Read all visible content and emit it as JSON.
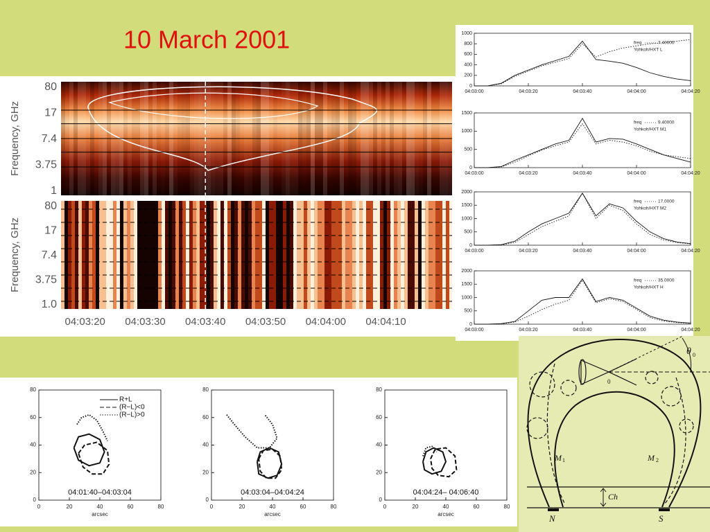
{
  "title": "10 March 2001",
  "chart_data": [
    {
      "type": "heatmap",
      "ylabel": "Frequency, GHz",
      "categories": [
        "80",
        "17",
        "7.4",
        "3.75",
        "1"
      ],
      "xlim": [
        "04:03:16",
        "04:04:21"
      ],
      "marker_x": "04:03:40"
    },
    {
      "type": "heatmap",
      "ylabel": "Frequency, GHz",
      "categories": [
        "80",
        "17",
        "7.4",
        "3.75",
        "1.0"
      ],
      "xlim": [
        "04:03:16",
        "04:04:21"
      ],
      "marker_x": "04:03:40",
      "xticks": [
        "04:03:20",
        "04:03:30",
        "04:03:40",
        "04:03:50",
        "04:04:00",
        "04:04:10"
      ]
    },
    {
      "type": "line",
      "legend": [
        "freq",
        "7.40000",
        "Yohkoh/HXT L"
      ],
      "x": [
        "04:03:00",
        "04:03:05",
        "04:03:10",
        "04:03:15",
        "04:03:20",
        "04:03:25",
        "04:03:30",
        "04:03:35",
        "04:03:40",
        "04:03:45",
        "04:03:50",
        "04:03:55",
        "04:04:00",
        "04:04:05",
        "04:04:10",
        "04:04:15",
        "04:04:20"
      ],
      "xlim": [
        "04:03:00",
        "04:04:20"
      ],
      "xticks": [
        "04:03:00",
        "04:03:20",
        "04:03:40",
        "04:04:00",
        "04:04:20"
      ],
      "ylim": [
        0,
        1000
      ],
      "yticks": [
        0,
        200,
        400,
        600,
        800,
        1000
      ],
      "series": [
        {
          "style": "solid",
          "values": [
            0,
            0,
            50,
            200,
            300,
            400,
            480,
            560,
            850,
            500,
            470,
            430,
            350,
            250,
            180,
            130,
            100
          ]
        },
        {
          "style": "dotted",
          "values": [
            0,
            0,
            40,
            180,
            280,
            380,
            450,
            520,
            800,
            550,
            650,
            720,
            760,
            800,
            820,
            850,
            880
          ]
        }
      ]
    },
    {
      "type": "line",
      "legend": [
        "freq",
        "9.40000",
        "Yohkoh/HXT M1"
      ],
      "x": [
        "04:03:00",
        "04:03:05",
        "04:03:10",
        "04:03:15",
        "04:03:20",
        "04:03:25",
        "04:03:30",
        "04:03:35",
        "04:03:40",
        "04:03:45",
        "04:03:50",
        "04:03:55",
        "04:04:00",
        "04:04:05",
        "04:04:10",
        "04:04:15",
        "04:04:20"
      ],
      "xlim": [
        "04:03:00",
        "04:04:20"
      ],
      "xticks": [
        "04:03:00",
        "04:03:20",
        "04:03:40",
        "04:04:00",
        "04:04:20"
      ],
      "ylim": [
        0,
        1500
      ],
      "yticks": [
        0,
        500,
        1000,
        1500
      ],
      "series": [
        {
          "style": "solid",
          "values": [
            0,
            0,
            30,
            200,
            350,
            500,
            650,
            750,
            1350,
            700,
            800,
            780,
            650,
            500,
            350,
            250,
            150
          ]
        },
        {
          "style": "dotted",
          "values": [
            0,
            0,
            20,
            150,
            320,
            480,
            600,
            700,
            1200,
            650,
            750,
            700,
            600,
            450,
            350,
            300,
            250
          ]
        }
      ]
    },
    {
      "type": "line",
      "legend": [
        "freq",
        "17.0000",
        "Yohkoh/HXT M2"
      ],
      "x": [
        "04:03:00",
        "04:03:05",
        "04:03:10",
        "04:03:15",
        "04:03:20",
        "04:03:25",
        "04:03:30",
        "04:03:35",
        "04:03:40",
        "04:03:45",
        "04:03:50",
        "04:03:55",
        "04:04:00",
        "04:04:05",
        "04:04:10",
        "04:04:15",
        "04:04:20"
      ],
      "xlim": [
        "04:03:00",
        "04:04:20"
      ],
      "xticks": [
        "04:03:00",
        "04:03:20",
        "04:03:40",
        "04:04:00",
        "04:04:20"
      ],
      "ylim": [
        0,
        2000
      ],
      "yticks": [
        0,
        500,
        1000,
        1500,
        2000
      ],
      "series": [
        {
          "style": "solid",
          "values": [
            0,
            0,
            20,
            150,
            500,
            800,
            1000,
            1200,
            1950,
            1100,
            1550,
            1400,
            900,
            500,
            250,
            120,
            60
          ]
        },
        {
          "style": "dotted",
          "values": [
            0,
            0,
            10,
            100,
            400,
            700,
            900,
            1100,
            1950,
            1000,
            1500,
            1300,
            800,
            400,
            200,
            100,
            50
          ]
        }
      ]
    },
    {
      "type": "line",
      "legend": [
        "freq",
        "35.0000",
        "Yohkoh/HXT H"
      ],
      "x": [
        "04:03:00",
        "04:03:05",
        "04:03:10",
        "04:03:15",
        "04:03:20",
        "04:03:25",
        "04:03:30",
        "04:03:35",
        "04:03:40",
        "04:03:45",
        "04:03:50",
        "04:03:55",
        "04:04:00",
        "04:04:05",
        "04:04:10",
        "04:04:15",
        "04:04:20"
      ],
      "xlim": [
        "04:03:00",
        "04:04:20"
      ],
      "xticks": [
        "04:03:00",
        "04:03:20",
        "04:03:40",
        "04:04:00",
        "04:04:20"
      ],
      "ylim": [
        0,
        2000
      ],
      "yticks": [
        0,
        500,
        1000,
        1500,
        2000
      ],
      "series": [
        {
          "style": "solid",
          "values": [
            0,
            0,
            20,
            100,
            500,
            900,
            1000,
            1000,
            1700,
            850,
            1000,
            900,
            600,
            300,
            150,
            80,
            40
          ]
        },
        {
          "style": "dotted",
          "values": [
            0,
            0,
            10,
            80,
            300,
            550,
            750,
            900,
            1650,
            800,
            950,
            850,
            550,
            250,
            120,
            60,
            30
          ]
        }
      ]
    },
    {
      "type": "contour",
      "xlabel": "arcsec",
      "annotation": "04:01:40–04:03:04",
      "xlim": [
        0,
        80
      ],
      "ylim": [
        0,
        80
      ],
      "xticks": [
        0,
        20,
        40,
        60,
        80
      ],
      "yticks": [
        0,
        20,
        40,
        60,
        80
      ],
      "series": [
        {
          "name": "R+L",
          "style": "solid",
          "x": [
            23,
            26,
            33,
            40,
            43,
            40,
            33,
            26,
            23
          ],
          "y": [
            38,
            46,
            48,
            44,
            35,
            27,
            25,
            29,
            38
          ]
        },
        {
          "name": "(R−L)<0",
          "style": "dashed",
          "x": [
            26,
            30,
            38,
            45,
            46,
            42,
            35,
            29,
            26
          ],
          "y": [
            34,
            40,
            42,
            36,
            26,
            19,
            19,
            24,
            34
          ]
        },
        {
          "name": "(R−L)>0",
          "style": "dotted",
          "x": [
            25,
            28,
            33,
            38,
            42,
            45
          ],
          "y": [
            55,
            60,
            62,
            58,
            50,
            43
          ]
        }
      ]
    },
    {
      "type": "contour",
      "xlabel": "arcsec",
      "annotation": "04:03:04–04:04:24",
      "xlim": [
        0,
        80
      ],
      "ylim": [
        0,
        80
      ],
      "xticks": [
        0,
        20,
        40,
        60,
        80
      ],
      "yticks": [
        0,
        20,
        40,
        60,
        80
      ],
      "series": [
        {
          "style": "solid",
          "x": [
            30,
            32,
            38,
            44,
            46,
            43,
            37,
            31,
            30
          ],
          "y": [
            28,
            35,
            38,
            35,
            26,
            18,
            16,
            19,
            28
          ]
        },
        {
          "style": "dashed",
          "x": [
            31,
            34,
            40,
            45,
            46,
            42,
            36,
            32,
            31
          ],
          "y": [
            30,
            36,
            37,
            32,
            22,
            16,
            16,
            21,
            30
          ]
        },
        {
          "style": "dotted",
          "x": [
            10,
            15,
            22,
            30,
            38,
            43,
            40,
            35
          ],
          "y": [
            62,
            55,
            46,
            38,
            38,
            45,
            55,
            62
          ]
        }
      ]
    },
    {
      "type": "contour",
      "xlabel": "arcsec",
      "annotation": "04:04:24– 04:06:40",
      "xlim": [
        0,
        80
      ],
      "ylim": [
        0,
        80
      ],
      "xticks": [
        0,
        20,
        40,
        60,
        80
      ],
      "yticks": [
        0,
        20,
        40,
        60,
        80
      ],
      "series": [
        {
          "style": "solid",
          "x": [
            25,
            27,
            32,
            38,
            40,
            37,
            31,
            26,
            25
          ],
          "y": [
            28,
            35,
            38,
            35,
            28,
            21,
            19,
            22,
            28
          ]
        },
        {
          "style": "dashed",
          "x": [
            30,
            33,
            40,
            46,
            47,
            42,
            35,
            31,
            30
          ],
          "y": [
            30,
            37,
            38,
            32,
            22,
            17,
            18,
            23,
            30
          ]
        },
        {
          "style": "dotted",
          "x": [
            25,
            27,
            31,
            34
          ],
          "y": [
            32,
            38,
            39,
            35
          ]
        }
      ]
    }
  ],
  "diagram": {
    "labels": [
      "θ",
      "0",
      "0",
      "M",
      "1",
      "M",
      "2",
      "Ch",
      "N",
      "S"
    ]
  }
}
